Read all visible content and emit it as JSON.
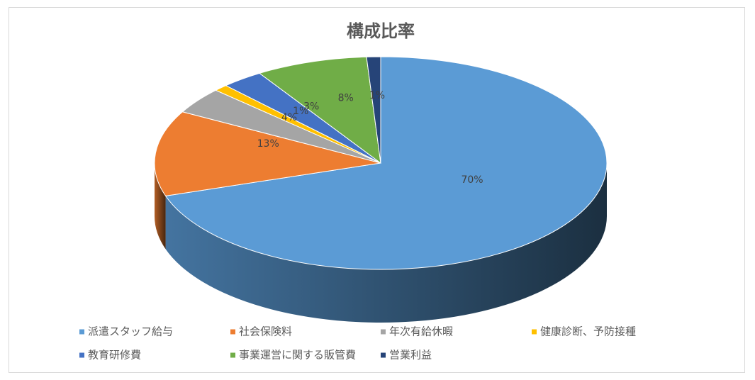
{
  "chart_data": {
    "type": "pie3d",
    "title": "構成比率",
    "categories": [
      "派遣スタッフ給与",
      "社会保険料",
      "年次有給休暇",
      "健康診断、予防接種",
      "教育研修費",
      "事業運営に関する販管費",
      "営業利益"
    ],
    "values": [
      70,
      13,
      4,
      1,
      3,
      8,
      1
    ],
    "value_labels": [
      "70%",
      "13%",
      "4%",
      "1%",
      "3%",
      "8%",
      "1%"
    ],
    "colors": [
      "#5b9bd5",
      "#ed7d31",
      "#a5a5a5",
      "#ffc000",
      "#4472c4",
      "#70ad47",
      "#264478"
    ],
    "legend": "bottom"
  }
}
